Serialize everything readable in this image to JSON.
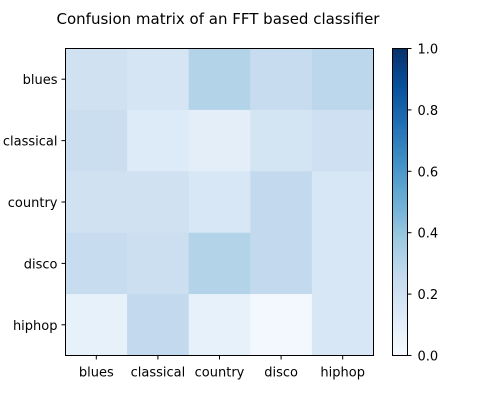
{
  "chart_data": {
    "type": "heatmap",
    "title": "Confusion matrix of an FFT based classifier",
    "xlabel": "",
    "ylabel": "",
    "x_categories": [
      "blues",
      "classical",
      "country",
      "disco",
      "hiphop"
    ],
    "y_categories": [
      "blues",
      "classical",
      "country",
      "disco",
      "hiphop"
    ],
    "values": [
      [
        0.2,
        0.17,
        0.31,
        0.24,
        0.28
      ],
      [
        0.23,
        0.13,
        0.1,
        0.18,
        0.21
      ],
      [
        0.2,
        0.2,
        0.16,
        0.26,
        0.16
      ],
      [
        0.24,
        0.22,
        0.31,
        0.26,
        0.16
      ],
      [
        0.08,
        0.26,
        0.08,
        0.02,
        0.16
      ]
    ],
    "colormap": "Blues",
    "colorbar": {
      "range": [
        0.0,
        1.0
      ],
      "ticks": [
        "0.0",
        "0.2",
        "0.4",
        "0.6",
        "0.8",
        "1.0"
      ]
    },
    "grid": false
  }
}
